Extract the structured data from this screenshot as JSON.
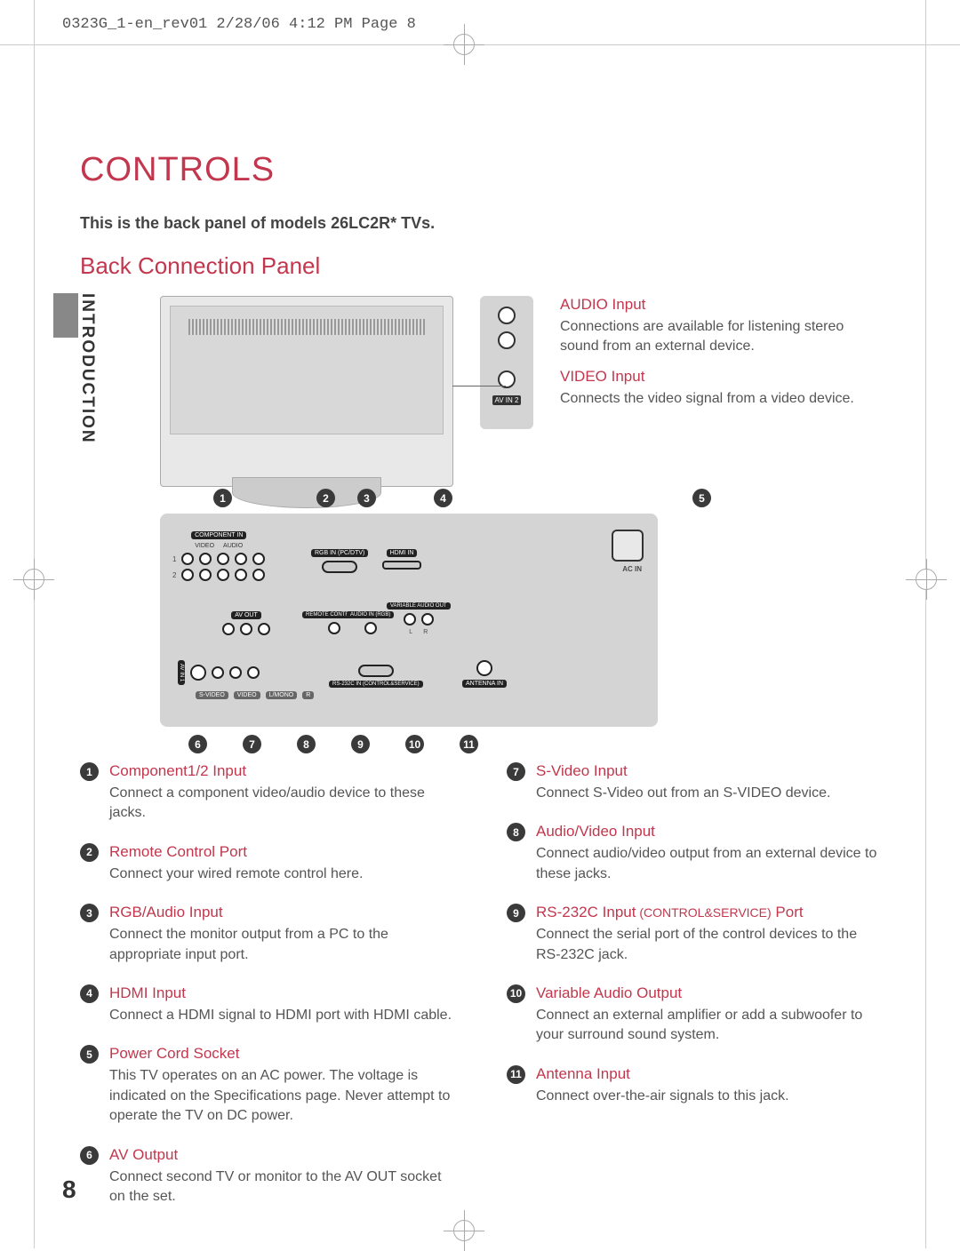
{
  "header": "0323G_1-en_rev01  2/28/06  4:12 PM  Page 8",
  "sideLabel": "INTRODUCTION",
  "title": "CONTROLS",
  "subtitle": "This is the back panel of models 26LC2R* TVs.",
  "section": "Back Connection Panel",
  "avSide": {
    "audio": {
      "title": "AUDIO Input",
      "desc": "Connections are available for listening stereo sound from an external device."
    },
    "video": {
      "title": "VIDEO Input",
      "desc": "Connects the video signal from a video device."
    },
    "panelLabel": "AV IN 2"
  },
  "bpLabels": {
    "compIn": "COMPONENT IN",
    "avOut": "AV OUT",
    "avIn1": "AV IN 1",
    "rgbIn": "RGB IN (PC/DTV)",
    "hdmiIn": "HDMI IN",
    "remote": "REMOTE CONTROL IN",
    "audioRgb": "AUDIO IN (RGB)",
    "varAudio": "VARIABLE AUDIO OUT",
    "rs232": "RS-232C IN (CONTROL&SERVICE)",
    "antenna": "ANTENNA IN",
    "svideo": "S-VIDEO",
    "videoLbl": "VIDEO",
    "audioLbl": "AUDIO",
    "lmono": "L/MONO",
    "r": "R",
    "l": "L",
    "acIn": "AC IN"
  },
  "items": [
    {
      "n": 1,
      "title": "Component1/2 Input",
      "desc": "Connect a component video/audio device to these jacks."
    },
    {
      "n": 2,
      "title": "Remote Control Port",
      "desc": "Connect your wired remote control here."
    },
    {
      "n": 3,
      "title": "RGB/Audio Input",
      "desc": "Connect the monitor output from a PC to the appropriate input port."
    },
    {
      "n": 4,
      "title": "HDMI Input",
      "desc": "Connect a HDMI signal to HDMI port with HDMI cable."
    },
    {
      "n": 5,
      "title": "Power Cord Socket",
      "desc": "This TV operates on an AC power. The voltage is indicated on the Specifications page. Never attempt to operate the TV on DC power."
    },
    {
      "n": 6,
      "title": "AV Output",
      "desc": "Connect second TV or monitor to the AV OUT socket on the set."
    },
    {
      "n": 7,
      "title": "S-Video Input",
      "desc": "Connect S-Video out from an S-VIDEO device."
    },
    {
      "n": 8,
      "title": "Audio/Video Input",
      "desc": "Connect audio/video output from an external device to these jacks."
    },
    {
      "n": 9,
      "title": "RS-232C Input",
      "sub": "(CONTROL&SERVICE)",
      "subTail": " Port",
      "desc": "Connect the serial port of the control devices to the RS-232C jack."
    },
    {
      "n": 10,
      "title": "Variable Audio Output",
      "desc": "Connect an external amplifier or add a subwoofer to your surround sound system."
    },
    {
      "n": 11,
      "title": "Antenna Input",
      "desc": "Connect over-the-air signals to this jack."
    }
  ],
  "pageNum": "8",
  "colors": {
    "accent": "#c2374d",
    "body": "#555",
    "badge": "#3a3a3a"
  }
}
